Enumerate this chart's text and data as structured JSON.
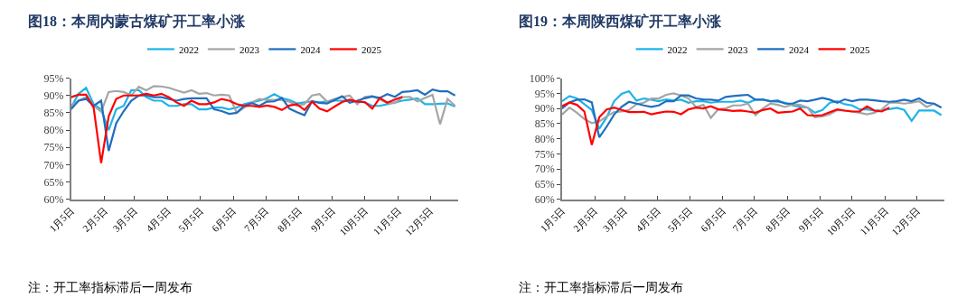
{
  "chart_data": [
    {
      "type": "line",
      "title": "图18：本周内蒙古煤矿开工率小涨",
      "annotations": [
        "注：开工率指标滞后一周发布"
      ],
      "x": [
        "--01-05",
        "--01-12",
        "--01-19",
        "--01-26",
        "--02-02",
        "--02-09",
        "--02-16",
        "--02-23",
        "--03-02",
        "--03-09",
        "--03-16",
        "--03-23",
        "--03-30",
        "--04-06",
        "--04-13",
        "--04-20",
        "--04-27",
        "--05-04",
        "--05-11",
        "--05-18",
        "--05-25",
        "--06-01",
        "--06-08",
        "--06-15",
        "--06-22",
        "--06-29",
        "--07-06",
        "--07-13",
        "--07-20",
        "--07-27",
        "--08-03",
        "--08-10",
        "--08-17",
        "--08-24",
        "--08-31",
        "--09-07",
        "--09-14",
        "--09-21",
        "--09-28",
        "--10-05",
        "--10-12",
        "--10-19",
        "--10-26",
        "--11-02",
        "--11-09",
        "--11-16",
        "--11-23",
        "--11-30",
        "--12-07",
        "--12-14",
        "--12-21",
        "--12-28"
      ],
      "xlim": [
        "--01-05",
        "--12-31"
      ],
      "xticks": [
        {
          "value": "--01-05",
          "label": "1月5日"
        },
        {
          "value": "--02-05",
          "label": "2月5日"
        },
        {
          "value": "--03-05",
          "label": "3月5日"
        },
        {
          "value": "--04-05",
          "label": "4月5日"
        },
        {
          "value": "--05-05",
          "label": "5月5日"
        },
        {
          "value": "--06-05",
          "label": "6月5日"
        },
        {
          "value": "--07-05",
          "label": "7月5日"
        },
        {
          "value": "--08-05",
          "label": "8月5日"
        },
        {
          "value": "--09-05",
          "label": "9月5日"
        },
        {
          "value": "--10-05",
          "label": "10月5日"
        },
        {
          "value": "--11-05",
          "label": "11月5日"
        },
        {
          "value": "--12-05",
          "label": "12月5日"
        }
      ],
      "ylim": [
        60,
        95
      ],
      "yticks": [
        {
          "value": 60,
          "label": "60%"
        },
        {
          "value": 65,
          "label": "65%"
        },
        {
          "value": 70,
          "label": "70%"
        },
        {
          "value": 75,
          "label": "75%"
        },
        {
          "value": 80,
          "label": "80%"
        },
        {
          "value": 85,
          "label": "85%"
        },
        {
          "value": 90,
          "label": "90%"
        },
        {
          "value": 95,
          "label": "95%"
        }
      ],
      "legend": "top",
      "grid": false,
      "marker": "none",
      "line_style": "solid",
      "series": [
        {
          "name": "2022",
          "color": "#1fb3e8",
          "values": [
            86.5,
            90.5,
            92.2,
            87.5,
            86,
            80,
            86,
            87,
            91.5,
            91.5,
            89.5,
            88.5,
            88.5,
            87,
            87,
            87.5,
            87.5,
            86,
            86,
            86.5,
            86.5,
            86,
            86.5,
            87.5,
            88,
            88.5,
            89.2,
            90.4,
            89.2,
            88.7,
            87.7,
            88,
            88.3,
            88,
            88.3,
            88.5,
            88.5,
            88.5,
            88.3,
            88,
            87,
            87,
            87.5,
            88,
            88.5,
            88.8,
            89.2,
            87.5,
            87.5,
            87.6,
            87.7,
            86.8
          ]
        },
        {
          "name": "2023",
          "color": "#a5a5a5",
          "values": [
            87,
            88.5,
            89.5,
            87,
            85.3,
            91,
            91.3,
            91,
            90,
            92.5,
            91.5,
            92.7,
            92.6,
            92.2,
            91.5,
            90.8,
            91.5,
            90.5,
            90.7,
            90,
            90.2,
            90,
            85,
            86.5,
            88,
            89,
            88.7,
            88.7,
            88.7,
            88.2,
            87,
            87.5,
            90,
            90.4,
            88.2,
            89,
            89.5,
            90,
            87.5,
            89.6,
            89.8,
            88.8,
            87.8,
            87.8,
            89.5,
            89.6,
            88.3,
            89.3,
            90.2,
            81.7,
            89,
            87
          ]
        },
        {
          "name": "2024",
          "color": "#1f6fbf",
          "values": [
            86,
            88.5,
            89,
            87,
            88.5,
            74,
            82,
            85.5,
            88.5,
            90,
            90,
            89.5,
            89.5,
            89,
            88.5,
            89,
            89.2,
            89.2,
            89.2,
            86,
            85.5,
            84.7,
            85,
            87,
            87.8,
            87,
            88.2,
            88.3,
            89.3,
            86.2,
            85.2,
            84.3,
            88.3,
            87.9,
            87.7,
            88.7,
            89.8,
            87.9,
            88.5,
            89.2,
            89.7,
            89.3,
            90.4,
            89.6,
            91,
            91.2,
            91.5,
            90.2,
            91.7,
            91.2,
            91.2,
            90
          ]
        },
        {
          "name": "2025",
          "color": "#ff0000",
          "values": [
            89.5,
            90.2,
            90.2,
            86.5,
            70.5,
            84,
            89,
            90,
            90,
            90,
            90.5,
            90,
            90.5,
            89.5,
            88,
            87,
            88.5,
            87.5,
            87.5,
            88,
            89,
            88.5,
            87.5,
            87,
            87,
            86.7,
            87.1,
            86.7,
            85.8,
            87.1,
            87.5,
            85.8,
            88.2,
            86.2,
            85.4,
            86.8,
            88.1,
            88.8,
            88.2,
            88.1,
            86.2,
            89.3,
            87.9,
            88.8,
            89.6,
            null,
            null,
            null,
            null,
            null,
            null,
            null
          ]
        }
      ]
    },
    {
      "type": "line",
      "title": "图19：本周陕西煤矿开工率小涨",
      "annotations": [
        "注：开工率指标滞后一周发布"
      ],
      "x": [
        "--01-05",
        "--01-12",
        "--01-19",
        "--01-26",
        "--02-02",
        "--02-09",
        "--02-16",
        "--02-23",
        "--03-02",
        "--03-09",
        "--03-16",
        "--03-23",
        "--03-30",
        "--04-06",
        "--04-13",
        "--04-20",
        "--04-27",
        "--05-04",
        "--05-11",
        "--05-18",
        "--05-25",
        "--06-01",
        "--06-08",
        "--06-15",
        "--06-22",
        "--06-29",
        "--07-06",
        "--07-13",
        "--07-20",
        "--07-27",
        "--08-03",
        "--08-10",
        "--08-17",
        "--08-24",
        "--08-31",
        "--09-07",
        "--09-14",
        "--09-21",
        "--09-28",
        "--10-05",
        "--10-12",
        "--10-19",
        "--10-26",
        "--11-02",
        "--11-09",
        "--11-16",
        "--11-23",
        "--11-30",
        "--12-07",
        "--12-14",
        "--12-21",
        "--12-28"
      ],
      "xlim": [
        "--01-05",
        "--12-31"
      ],
      "xticks": [
        {
          "value": "--01-05",
          "label": "1月5日"
        },
        {
          "value": "--02-05",
          "label": "2月5日"
        },
        {
          "value": "--03-05",
          "label": "3月5日"
        },
        {
          "value": "--04-05",
          "label": "4月5日"
        },
        {
          "value": "--05-05",
          "label": "5月5日"
        },
        {
          "value": "--06-05",
          "label": "6月5日"
        },
        {
          "value": "--07-05",
          "label": "7月5日"
        },
        {
          "value": "--08-05",
          "label": "8月5日"
        },
        {
          "value": "--09-05",
          "label": "9月5日"
        },
        {
          "value": "--10-05",
          "label": "10月5日"
        },
        {
          "value": "--11-05",
          "label": "11月5日"
        },
        {
          "value": "--12-05",
          "label": "12月5日"
        }
      ],
      "ylim": [
        60,
        100
      ],
      "yticks": [
        {
          "value": 60,
          "label": "60%"
        },
        {
          "value": 65,
          "label": "65%"
        },
        {
          "value": 70,
          "label": "70%"
        },
        {
          "value": 75,
          "label": "75%"
        },
        {
          "value": 80,
          "label": "80%"
        },
        {
          "value": 85,
          "label": "85%"
        },
        {
          "value": 90,
          "label": "90%"
        },
        {
          "value": 95,
          "label": "95%"
        },
        {
          "value": 100,
          "label": "100%"
        }
      ],
      "legend": "top",
      "grid": false,
      "marker": "none",
      "line_style": "solid",
      "series": [
        {
          "name": "2022",
          "color": "#1fb3e8",
          "values": [
            92.4,
            94.1,
            93.3,
            91.4,
            89.5,
            83.3,
            87.1,
            92.4,
            94.8,
            95.7,
            92.6,
            93.3,
            92.9,
            92.4,
            93,
            92.6,
            92.9,
            91.9,
            92.4,
            92.4,
            91.9,
            92.2,
            92.2,
            92.2,
            92.6,
            91.9,
            92.9,
            93,
            92.4,
            92.2,
            91.9,
            91,
            90.5,
            90.3,
            88.6,
            89.5,
            91.9,
            92.4,
            91.4,
            91,
            89.7,
            89.7,
            89.3,
            89.5,
            89.8,
            90.2,
            89.5,
            85.9,
            89.3,
            89.3,
            89.3,
            87.8
          ]
        },
        {
          "name": "2023",
          "color": "#a5a5a5",
          "values": [
            88,
            90.3,
            88.6,
            86.5,
            85.2,
            85.7,
            87.4,
            88.8,
            89,
            89.5,
            91.4,
            91.9,
            93.3,
            93.3,
            94.5,
            95,
            94.3,
            93.3,
            90.5,
            91.2,
            86.9,
            89.7,
            90,
            91,
            91,
            91.6,
            87.8,
            90,
            91.6,
            91.2,
            90.5,
            91.4,
            91.2,
            90.3,
            87.1,
            87.4,
            88.1,
            89.5,
            89.3,
            89,
            88.6,
            88.1,
            88.6,
            89.7,
            91.9,
            91.9,
            91.6,
            91.9,
            92.4,
            90.5,
            91.6,
            90.3
          ]
        },
        {
          "name": "2024",
          "color": "#1f6fbf",
          "values": [
            90,
            92,
            92.9,
            93,
            92,
            80.5,
            84,
            88,
            90.5,
            92.2,
            91.6,
            91,
            90.5,
            91,
            92.4,
            92.4,
            94.3,
            94.3,
            93.3,
            93,
            92.9,
            92.6,
            93.8,
            94.1,
            94.3,
            94.5,
            92.9,
            92.9,
            92.4,
            92.6,
            91.6,
            91.6,
            92.6,
            92.4,
            92.9,
            93.5,
            92.9,
            91.9,
            93,
            92.4,
            92.9,
            92.9,
            92.7,
            92.4,
            92.2,
            92.4,
            92.9,
            92.4,
            93.3,
            91.9,
            91.6,
            90.3
          ]
        },
        {
          "name": "2025",
          "color": "#ff0000",
          "values": [
            90.8,
            92,
            91.2,
            89,
            78,
            87.1,
            89.7,
            90.3,
            89.5,
            88.8,
            88.8,
            88.9,
            88.1,
            88.6,
            89,
            88.9,
            88.1,
            89.7,
            90.3,
            90,
            90.7,
            89.7,
            89.5,
            89.2,
            89.3,
            89,
            88.6,
            89.5,
            90,
            88.6,
            88.8,
            89,
            90,
            87.8,
            87.6,
            87.8,
            88.8,
            89.7,
            89.3,
            89,
            89,
            90.7,
            89.3,
            89,
            90.3,
            null,
            null,
            null,
            null,
            null,
            null,
            null
          ]
        }
      ]
    }
  ]
}
